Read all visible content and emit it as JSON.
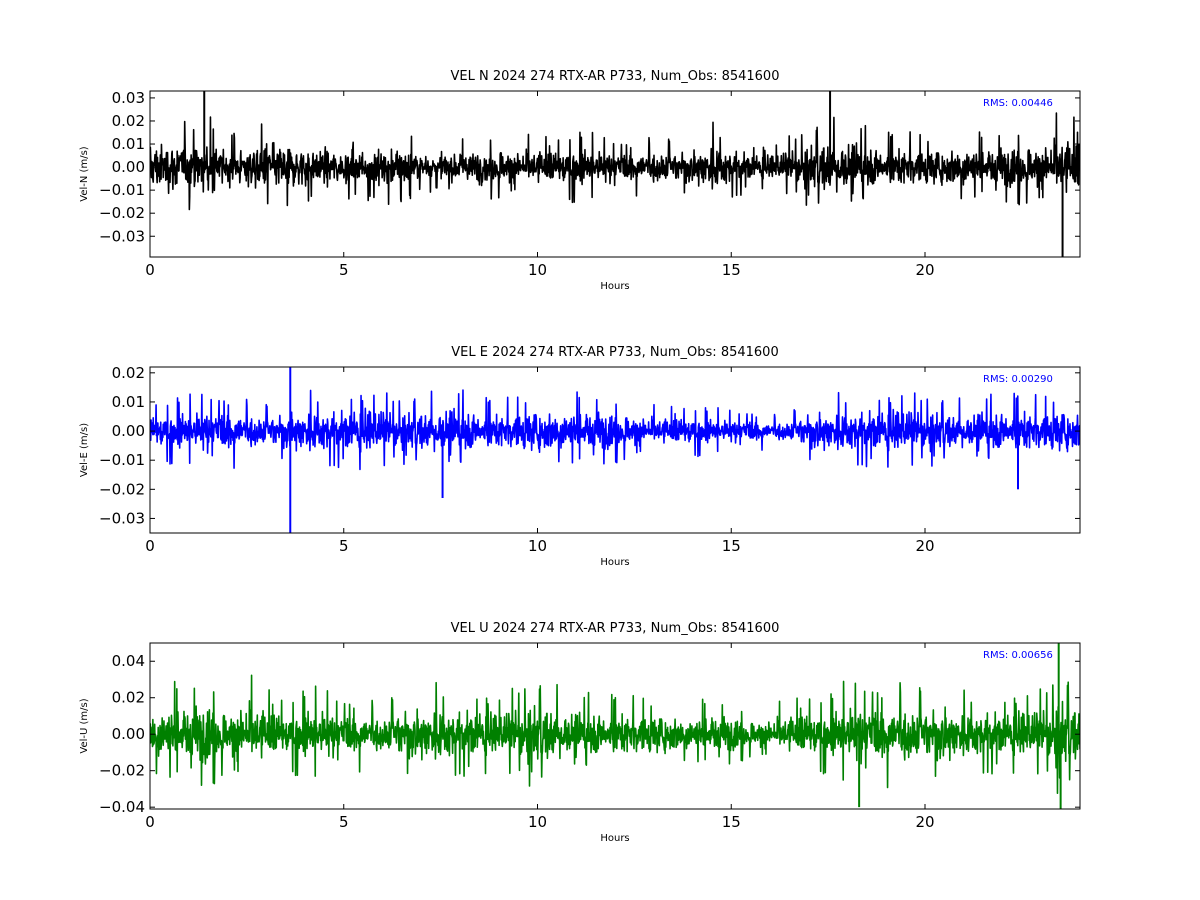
{
  "chart_data": [
    {
      "type": "line",
      "title": "VEL N 2024 274 RTX-AR  P733, Num_Obs: 8541600",
      "xlabel": "Hours",
      "ylabel": "Vel-N (m/s)",
      "xlim": [
        0,
        24
      ],
      "ylim": [
        -0.039,
        0.033
      ],
      "xticks": [
        0,
        5,
        10,
        15,
        20
      ],
      "yticks": [
        -0.03,
        -0.02,
        -0.01,
        0.0,
        0.01,
        0.02,
        0.03
      ],
      "color": "#000000",
      "rms_label": "RMS:  0.00446",
      "envelope": {
        "x": [
          0,
          0.5,
          1,
          1.5,
          2,
          2.5,
          3,
          3.5,
          4,
          4.5,
          5,
          5.5,
          6,
          6.5,
          7,
          7.5,
          8,
          8.5,
          9,
          9.5,
          10,
          10.5,
          11,
          11.5,
          12,
          12.5,
          13,
          13.5,
          14,
          14.5,
          15,
          15.5,
          16,
          16.5,
          17,
          17.5,
          18,
          18.5,
          19,
          19.5,
          20,
          20.5,
          21,
          21.5,
          22,
          22.5,
          23,
          23.5,
          24
        ],
        "amplitude": [
          0.019,
          0.018,
          0.019,
          0.02,
          0.012,
          0.016,
          0.018,
          0.017,
          0.015,
          0.014,
          0.012,
          0.013,
          0.014,
          0.015,
          0.009,
          0.01,
          0.011,
          0.012,
          0.013,
          0.012,
          0.013,
          0.012,
          0.014,
          0.013,
          0.012,
          0.011,
          0.012,
          0.012,
          0.013,
          0.018,
          0.013,
          0.009,
          0.008,
          0.012,
          0.015,
          0.019,
          0.019,
          0.016,
          0.014,
          0.014,
          0.013,
          0.013,
          0.016,
          0.013,
          0.014,
          0.015,
          0.016,
          0.022,
          0.02
        ]
      },
      "spikes": [
        {
          "x": 1.4,
          "y": 0.033
        },
        {
          "x": 17.55,
          "y": 0.033
        },
        {
          "x": 23.55,
          "y": -0.039
        }
      ]
    },
    {
      "type": "line",
      "title": "VEL E 2024 274 RTX-AR  P733, Num_Obs: 8541600",
      "xlabel": "Hours",
      "ylabel": "Vel-E (m/s)",
      "xlim": [
        0,
        24
      ],
      "ylim": [
        -0.035,
        0.022
      ],
      "xticks": [
        0,
        5,
        10,
        15,
        20
      ],
      "yticks": [
        -0.03,
        -0.02,
        -0.01,
        0.0,
        0.01,
        0.02
      ],
      "color": "#0000ff",
      "rms_label": "RMS:  0.00290",
      "envelope": {
        "x": [
          0,
          0.5,
          1,
          1.5,
          2,
          2.5,
          3,
          3.5,
          4,
          4.5,
          5,
          5.5,
          6,
          6.5,
          7,
          7.5,
          8,
          8.5,
          9,
          9.5,
          10,
          10.5,
          11,
          11.5,
          12,
          12.5,
          13,
          13.5,
          14,
          14.5,
          15,
          15.5,
          16,
          16.5,
          17,
          17.5,
          18,
          18.5,
          19,
          19.5,
          20,
          20.5,
          21,
          21.5,
          22,
          22.5,
          23,
          23.5,
          24
        ],
        "amplitude": [
          0.009,
          0.01,
          0.011,
          0.013,
          0.012,
          0.01,
          0.009,
          0.011,
          0.013,
          0.012,
          0.011,
          0.012,
          0.012,
          0.01,
          0.011,
          0.013,
          0.013,
          0.011,
          0.01,
          0.011,
          0.012,
          0.012,
          0.012,
          0.011,
          0.01,
          0.009,
          0.008,
          0.008,
          0.008,
          0.007,
          0.007,
          0.007,
          0.005,
          0.006,
          0.011,
          0.012,
          0.012,
          0.011,
          0.011,
          0.012,
          0.011,
          0.01,
          0.01,
          0.011,
          0.012,
          0.012,
          0.011,
          0.012,
          0.011
        ]
      },
      "spikes": [
        {
          "x": 3.62,
          "y": 0.022
        },
        {
          "x": 3.62,
          "y": -0.035
        },
        {
          "x": 7.55,
          "y": -0.023
        },
        {
          "x": 22.4,
          "y": -0.02
        }
      ]
    },
    {
      "type": "line",
      "title": "VEL U 2024 274 RTX-AR  P733, Num_Obs: 8541600",
      "xlabel": "Hours",
      "ylabel": "Vel-U (m/s)",
      "xlim": [
        0,
        24
      ],
      "ylim": [
        -0.041,
        0.05
      ],
      "xticks": [
        0,
        5,
        10,
        15,
        20
      ],
      "yticks": [
        -0.04,
        -0.02,
        0.0,
        0.02,
        0.04
      ],
      "color": "#008000",
      "rms_label": "RMS:  0.00656",
      "envelope": {
        "x": [
          0,
          0.5,
          1,
          1.5,
          2,
          2.5,
          3,
          3.5,
          4,
          4.5,
          5,
          5.5,
          6,
          6.5,
          7,
          7.5,
          8,
          8.5,
          9,
          9.5,
          10,
          10.5,
          11,
          11.5,
          12,
          12.5,
          13,
          13.5,
          14,
          14.5,
          15,
          15.5,
          16,
          16.5,
          17,
          17.5,
          18,
          18.5,
          19,
          19.5,
          20,
          20.5,
          21,
          21.5,
          22,
          22.5,
          23,
          23.5,
          24
        ],
        "amplitude": [
          0.024,
          0.026,
          0.025,
          0.027,
          0.02,
          0.03,
          0.024,
          0.018,
          0.022,
          0.024,
          0.02,
          0.018,
          0.016,
          0.024,
          0.025,
          0.026,
          0.021,
          0.02,
          0.018,
          0.024,
          0.026,
          0.024,
          0.02,
          0.021,
          0.02,
          0.019,
          0.018,
          0.017,
          0.016,
          0.018,
          0.015,
          0.012,
          0.014,
          0.018,
          0.02,
          0.019,
          0.027,
          0.028,
          0.026,
          0.026,
          0.025,
          0.027,
          0.022,
          0.021,
          0.018,
          0.02,
          0.022,
          0.03,
          0.024
        ]
      },
      "spikes": [
        {
          "x": 23.45,
          "y": 0.05
        },
        {
          "x": 23.5,
          "y": -0.041
        },
        {
          "x": 18.3,
          "y": -0.04
        }
      ]
    }
  ]
}
